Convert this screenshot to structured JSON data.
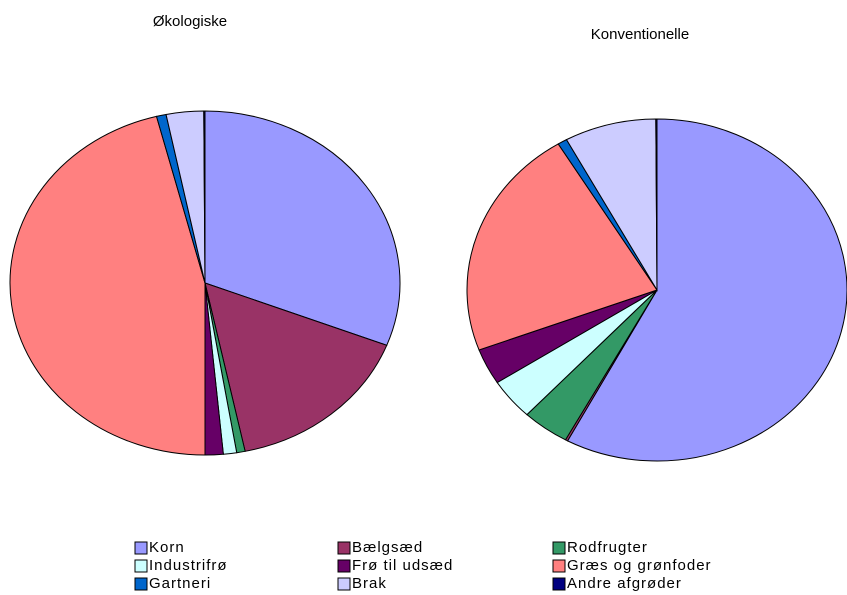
{
  "chart_data": [
    {
      "type": "pie",
      "title": "Økologiske",
      "values": [
        30.9,
        15.8,
        0.7,
        1.1,
        1.5,
        46.0,
        0.8,
        3.1,
        0.1
      ]
    },
    {
      "type": "pie",
      "title": "Konventionelle",
      "values": [
        57.8,
        0.2,
        4.0,
        3.9,
        3.4,
        22.0,
        0.8,
        7.8,
        0.1
      ]
    }
  ],
  "legend": {
    "labels": [
      "Korn",
      "Bælgsæd",
      "Rodfrugter",
      "Industrifrø",
      "Frø til udsæd",
      "Græs og grønfoder",
      "Gartneri",
      "Brak",
      "Andre afgrøder"
    ],
    "colors": [
      "#9999ff",
      "#993366",
      "#339966",
      "#ccffff",
      "#660066",
      "#ff8080",
      "#0066cc",
      "#ccccff",
      "#000080"
    ]
  }
}
